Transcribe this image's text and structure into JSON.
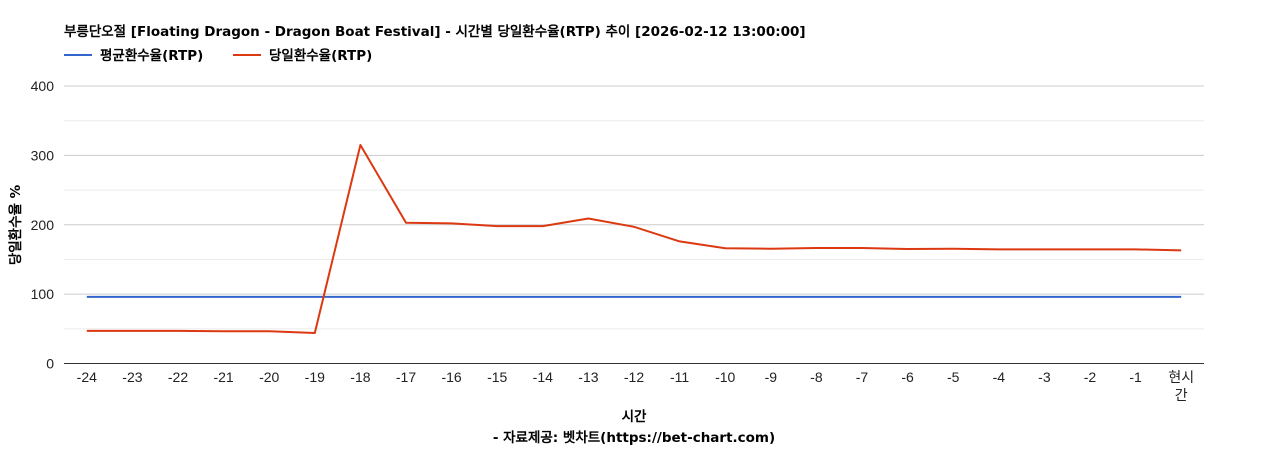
{
  "chart_data": {
    "type": "line",
    "title": "부릉단오절 [Floating Dragon - Dragon Boat Festival] - 시간별 당일환수율(RTP) 추이 [2026-02-12 13:00:00]",
    "xlabel": "시간",
    "ylabel": "당일환수율 %",
    "source_note": "- 자료제공: 벳차트(https://bet-chart.com)",
    "ylim": [
      0,
      400
    ],
    "yticks": [
      "0",
      "100",
      "200",
      "300",
      "400"
    ],
    "grid": true,
    "legend_position": "top-left",
    "categories": [
      "-24",
      "-23",
      "-22",
      "-21",
      "-20",
      "-19",
      "-18",
      "-17",
      "-16",
      "-15",
      "-14",
      "-13",
      "-12",
      "-11",
      "-10",
      "-9",
      "-8",
      "-7",
      "-6",
      "-5",
      "-4",
      "-3",
      "-2",
      "-1",
      "현시간"
    ],
    "series": [
      {
        "name": "평균환수율(RTP)",
        "color": "#3366cc",
        "values": [
          96,
          96,
          96,
          96,
          96,
          96,
          96,
          96,
          96,
          96,
          96,
          96,
          96,
          96,
          96,
          96,
          96,
          96,
          96,
          96,
          96,
          96,
          96,
          96,
          96
        ]
      },
      {
        "name": "당일환수율(RTP)",
        "color": "#dc3912",
        "values": [
          47,
          47,
          47,
          46.5,
          46.5,
          44,
          315,
          203,
          202,
          198,
          198,
          209,
          197,
          176,
          166,
          165.5,
          166.5,
          166.5,
          165,
          165.5,
          164.5,
          164.5,
          164.5,
          164.5,
          163
        ]
      }
    ]
  }
}
